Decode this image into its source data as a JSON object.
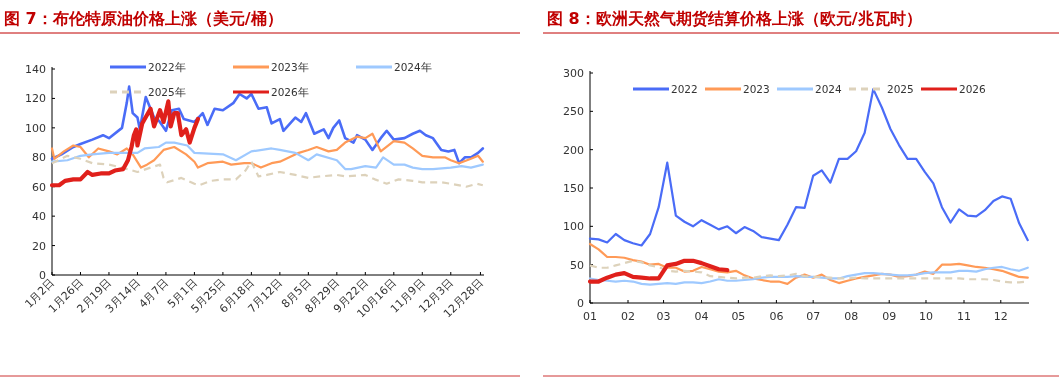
{
  "chart_data": [
    {
      "type": "line",
      "title": "图 7：布伦特原油价格上涨（美元/桶）",
      "legend": "top",
      "grid": false,
      "marker": "none",
      "xlim": [
        "--01-02",
        "--12-31"
      ],
      "xticks": [
        {
          "value": "--01-02",
          "label": "1月2日"
        },
        {
          "value": "--01-26",
          "label": "1月26日"
        },
        {
          "value": "--02-19",
          "label": "2月19日"
        },
        {
          "value": "--03-14",
          "label": "3月14日"
        },
        {
          "value": "--04-07",
          "label": "4月7日"
        },
        {
          "value": "--05-01",
          "label": "5月1日"
        },
        {
          "value": "--05-25",
          "label": "5月25日"
        },
        {
          "value": "--06-18",
          "label": "6月18日"
        },
        {
          "value": "--07-12",
          "label": "7月12日"
        },
        {
          "value": "--08-05",
          "label": "8月5日"
        },
        {
          "value": "--08-29",
          "label": "8月29日"
        },
        {
          "value": "--09-22",
          "label": "9月22日"
        },
        {
          "value": "--10-16",
          "label": "10月16日"
        },
        {
          "value": "--11-09",
          "label": "11月9日"
        },
        {
          "value": "--12-03",
          "label": "12月3日"
        },
        {
          "value": "--12-28",
          "label": "12月28日"
        }
      ],
      "ylim": [
        0,
        140
      ],
      "yticks": [
        0,
        20,
        40,
        60,
        80,
        100,
        120,
        140
      ],
      "series": [
        {
          "name": "2022年",
          "color": "#4a6cf7",
          "line_style": "solid",
          "x": [
            "--01-02",
            "--01-10",
            "--01-20",
            "--01-26",
            "--02-05",
            "--02-14",
            "--02-19",
            "--03-01",
            "--03-05",
            "--03-07",
            "--03-10",
            "--03-14",
            "--03-16",
            "--03-21",
            "--03-28",
            "--04-01",
            "--04-07",
            "--04-12",
            "--04-18",
            "--04-22",
            "--05-01",
            "--05-08",
            "--05-12",
            "--05-18",
            "--05-25",
            "--06-03",
            "--06-08",
            "--06-14",
            "--06-18",
            "--06-24",
            "--07-01",
            "--07-05",
            "--07-12",
            "--07-15",
            "--07-25",
            "--07-30",
            "--08-03",
            "--08-10",
            "--08-18",
            "--08-22",
            "--08-26",
            "--08-31",
            "--09-05",
            "--09-12",
            "--09-15",
            "--09-22",
            "--09-28",
            "--10-05",
            "--10-10",
            "--10-16",
            "--10-25",
            "--11-01",
            "--11-07",
            "--11-12",
            "--11-18",
            "--11-25",
            "--12-01",
            "--12-06",
            "--12-10",
            "--12-15",
            "--12-20",
            "--12-26",
            "--12-30"
          ],
          "values": [
            79,
            82,
            87,
            89,
            92,
            95,
            93,
            100,
            117,
            128,
            110,
            107,
            99,
            121,
            107,
            105,
            98,
            112,
            113,
            106,
            104,
            110,
            102,
            113,
            112,
            117,
            123,
            120,
            123,
            113,
            114,
            103,
            106,
            98,
            107,
            104,
            110,
            96,
            99,
            93,
            100,
            105,
            93,
            90,
            95,
            92,
            85,
            93,
            98,
            92,
            93,
            96,
            98,
            95,
            93,
            85,
            84,
            85,
            76,
            80,
            80,
            83,
            86
          ]
        },
        {
          "name": "2023年",
          "color": "#ff9a57",
          "line_style": "solid",
          "x": [
            "--01-02",
            "--01-04",
            "--01-12",
            "--01-20",
            "--01-26",
            "--02-02",
            "--02-10",
            "--02-19",
            "--02-26",
            "--03-05",
            "--03-10",
            "--03-17",
            "--03-22",
            "--03-28",
            "--04-05",
            "--04-14",
            "--04-24",
            "--05-01",
            "--05-04",
            "--05-12",
            "--05-25",
            "--06-01",
            "--06-12",
            "--06-18",
            "--06-26",
            "--07-05",
            "--07-12",
            "--07-20",
            "--07-28",
            "--08-05",
            "--08-12",
            "--08-22",
            "--08-29",
            "--09-05",
            "--09-15",
            "--09-22",
            "--09-28",
            "--10-05",
            "--10-16",
            "--10-25",
            "--11-01",
            "--11-09",
            "--11-18",
            "--11-28",
            "--12-03",
            "--12-10",
            "--12-20",
            "--12-26",
            "--12-30"
          ],
          "values": [
            86,
            79,
            84,
            88,
            87,
            80,
            86,
            84,
            82,
            86,
            82,
            73,
            75,
            78,
            85,
            87,
            82,
            77,
            73,
            76,
            77,
            75,
            76,
            76,
            73,
            76,
            77,
            80,
            83,
            85,
            87,
            84,
            85,
            90,
            94,
            93,
            96,
            84,
            91,
            90,
            86,
            81,
            80,
            80,
            78,
            76,
            79,
            81,
            77
          ]
        },
        {
          "name": "2024年",
          "color": "#9ec9ff",
          "line_style": "solid",
          "x": [
            "--01-02",
            "--01-15",
            "--01-26",
            "--02-05",
            "--02-19",
            "--03-01",
            "--03-14",
            "--03-20",
            "--04-01",
            "--04-07",
            "--04-14",
            "--04-25",
            "--05-01",
            "--05-25",
            "--06-05",
            "--06-18",
            "--07-05",
            "--07-12",
            "--07-25",
            "--08-05",
            "--08-12",
            "--08-29",
            "--09-05",
            "--09-10",
            "--09-22",
            "--10-01",
            "--10-07",
            "--10-16",
            "--10-25",
            "--11-01",
            "--11-09",
            "--11-18",
            "--12-03",
            "--12-12",
            "--12-20",
            "--12-30"
          ],
          "values": [
            77,
            78,
            81,
            82,
            83,
            83,
            83,
            86,
            87,
            90,
            90,
            88,
            83,
            82,
            78,
            84,
            86,
            85,
            83,
            78,
            82,
            78,
            72,
            72,
            74,
            73,
            80,
            75,
            75,
            73,
            72,
            72,
            73,
            74,
            73,
            75
          ]
        },
        {
          "name": "2025年",
          "color": "#ddd2bb",
          "line_style": "dashed",
          "x": [
            "--01-02",
            "--01-15",
            "--01-26",
            "--02-05",
            "--02-19",
            "--03-01",
            "--03-14",
            "--03-25",
            "--04-02",
            "--04-05",
            "--04-08",
            "--04-20",
            "--05-01",
            "--05-05",
            "--05-15",
            "--05-25",
            "--06-05",
            "--06-13",
            "--06-18",
            "--06-24",
            "--07-01",
            "--07-12",
            "--07-25",
            "--08-05",
            "--08-15",
            "--08-29",
            "--09-05",
            "--09-22",
            "--09-30",
            "--10-10",
            "--10-20",
            "--11-01",
            "--11-09",
            "--11-25",
            "--12-03",
            "--12-16",
            "--12-25",
            "--12-30"
          ],
          "values": [
            76,
            81,
            79,
            76,
            75,
            73,
            70,
            73,
            75,
            66,
            63,
            66,
            62,
            61,
            64,
            65,
            65,
            71,
            77,
            67,
            68,
            70,
            68,
            66,
            67,
            68,
            67,
            68,
            65,
            62,
            65,
            64,
            63,
            63,
            62,
            60,
            62,
            61
          ]
        },
        {
          "name": "2026年",
          "color": "#e0201b",
          "line_style": "solid",
          "x": [
            "--01-02",
            "--01-08",
            "--01-13",
            "--01-20",
            "--01-26",
            "--02-01",
            "--02-05",
            "--02-12",
            "--02-19",
            "--02-24",
            "--03-02",
            "--03-06",
            "--03-09",
            "--03-11",
            "--03-13",
            "--03-14",
            "--03-18",
            "--03-25",
            "--03-28",
            "--04-02",
            "--04-05",
            "--04-09",
            "--04-11",
            "--04-14",
            "--04-17",
            "--04-20",
            "--04-24",
            "--04-27",
            "--05-01",
            "--05-04"
          ],
          "values": [
            61,
            61,
            64,
            65,
            65,
            70,
            68,
            69,
            69,
            71,
            72,
            78,
            87,
            95,
            99,
            88,
            103,
            113,
            101,
            112,
            104,
            118,
            101,
            110,
            110,
            95,
            99,
            90,
            100,
            106
          ]
        }
      ]
    },
    {
      "type": "line",
      "title": "图 8：欧洲天然气期货结算价格上涨（欧元/兆瓦时）",
      "legend": "top",
      "grid": false,
      "marker": "none",
      "xlim": [
        "--01-01",
        "--12-24"
      ],
      "xticks": [
        {
          "value": "--01-01",
          "label": "01"
        },
        {
          "value": "--02-01",
          "label": "02"
        },
        {
          "value": "--03-01",
          "label": "03"
        },
        {
          "value": "--04-01",
          "label": "04"
        },
        {
          "value": "--05-01",
          "label": "05"
        },
        {
          "value": "--06-01",
          "label": "06"
        },
        {
          "value": "--07-01",
          "label": "07"
        },
        {
          "value": "--08-01",
          "label": "08"
        },
        {
          "value": "--09-01",
          "label": "09"
        },
        {
          "value": "--10-01",
          "label": "10"
        },
        {
          "value": "--11-01",
          "label": "11"
        },
        {
          "value": "--12-01",
          "label": "12"
        }
      ],
      "ylim": [
        0,
        300
      ],
      "yticks": [
        0,
        50,
        100,
        150,
        200,
        250,
        300
      ],
      "x": [
        "--01-01",
        "--01-08",
        "--01-15",
        "--01-22",
        "--01-29",
        "--02-05",
        "--02-12",
        "--02-19",
        "--02-26",
        "--03-04",
        "--03-11",
        "--03-18",
        "--03-25",
        "--04-01",
        "--04-08",
        "--04-15",
        "--04-22",
        "--04-29",
        "--05-06",
        "--05-13",
        "--05-20",
        "--05-27",
        "--06-03",
        "--06-10",
        "--06-17",
        "--06-24",
        "--07-01",
        "--07-08",
        "--07-15",
        "--07-22",
        "--07-29",
        "--08-05",
        "--08-12",
        "--08-19",
        "--08-26",
        "--09-02",
        "--09-09",
        "--09-16",
        "--09-23",
        "--09-30",
        "--10-07",
        "--10-14",
        "--10-21",
        "--10-28",
        "--11-04",
        "--11-11",
        "--11-18",
        "--11-25",
        "--12-02",
        "--12-09",
        "--12-16",
        "--12-23"
      ],
      "series": [
        {
          "name": "2022",
          "color": "#4a6cf7",
          "line_style": "solid",
          "values": [
            84,
            83,
            79,
            90,
            82,
            78,
            75,
            90,
            125,
            183,
            114,
            106,
            100,
            108,
            102,
            96,
            100,
            91,
            99,
            94,
            86,
            84,
            82,
            102,
            125,
            124,
            166,
            173,
            157,
            188,
            188,
            198,
            222,
            279,
            255,
            227,
            206,
            188,
            188,
            171,
            156,
            125,
            105,
            122,
            114,
            113,
            121,
            133,
            139,
            136,
            104,
            82
          ]
        },
        {
          "name": "2023",
          "color": "#ff9a57",
          "line_style": "solid",
          "values": [
            77,
            70,
            60,
            60,
            59,
            56,
            54,
            50,
            51,
            46,
            46,
            41,
            42,
            47,
            44,
            41,
            40,
            42,
            36,
            32,
            30,
            28,
            28,
            25,
            33,
            37,
            33,
            37,
            30,
            26,
            29,
            32,
            34,
            36,
            38,
            37,
            34,
            35,
            37,
            41,
            38,
            50,
            50,
            51,
            49,
            47,
            46,
            44,
            42,
            38,
            34,
            33
          ]
        },
        {
          "name": "2024",
          "color": "#9ec9ff",
          "line_style": "solid",
          "values": [
            32,
            30,
            29,
            28,
            29,
            28,
            25,
            24,
            25,
            26,
            25,
            27,
            27,
            26,
            28,
            31,
            29,
            29,
            30,
            31,
            33,
            34,
            34,
            34,
            35,
            34,
            34,
            33,
            32,
            32,
            35,
            37,
            39,
            39,
            38,
            37,
            36,
            36,
            37,
            39,
            40,
            40,
            40,
            42,
            42,
            41,
            44,
            46,
            47,
            44,
            42,
            46
          ]
        },
        {
          "name": "2025",
          "color": "#ddd2bb",
          "line_style": "dashed",
          "values": [
            49,
            46,
            46,
            49,
            52,
            55,
            53,
            49,
            47,
            42,
            41,
            42,
            41,
            40,
            35,
            34,
            33,
            32,
            33,
            33,
            35,
            36,
            35,
            36,
            38,
            35,
            34,
            34,
            33,
            32,
            32,
            33,
            32,
            32,
            32,
            32,
            32,
            32,
            32,
            32,
            32,
            32,
            32,
            32,
            31,
            31,
            31,
            30,
            28,
            27,
            27,
            28
          ]
        },
        {
          "name": "2026",
          "color": "#e0201b",
          "line_style": "solid",
          "values": [
            28,
            28,
            33,
            37,
            39,
            34,
            33,
            32,
            32,
            49,
            51,
            55,
            55,
            52,
            48,
            44,
            43,
            null,
            null,
            null,
            null,
            null,
            null,
            null,
            null,
            null,
            null,
            null,
            null,
            null,
            null,
            null,
            null,
            null,
            null,
            null,
            null,
            null,
            null,
            null,
            null,
            null,
            null,
            null,
            null,
            null,
            null,
            null,
            null,
            null,
            null,
            null
          ]
        }
      ]
    }
  ]
}
